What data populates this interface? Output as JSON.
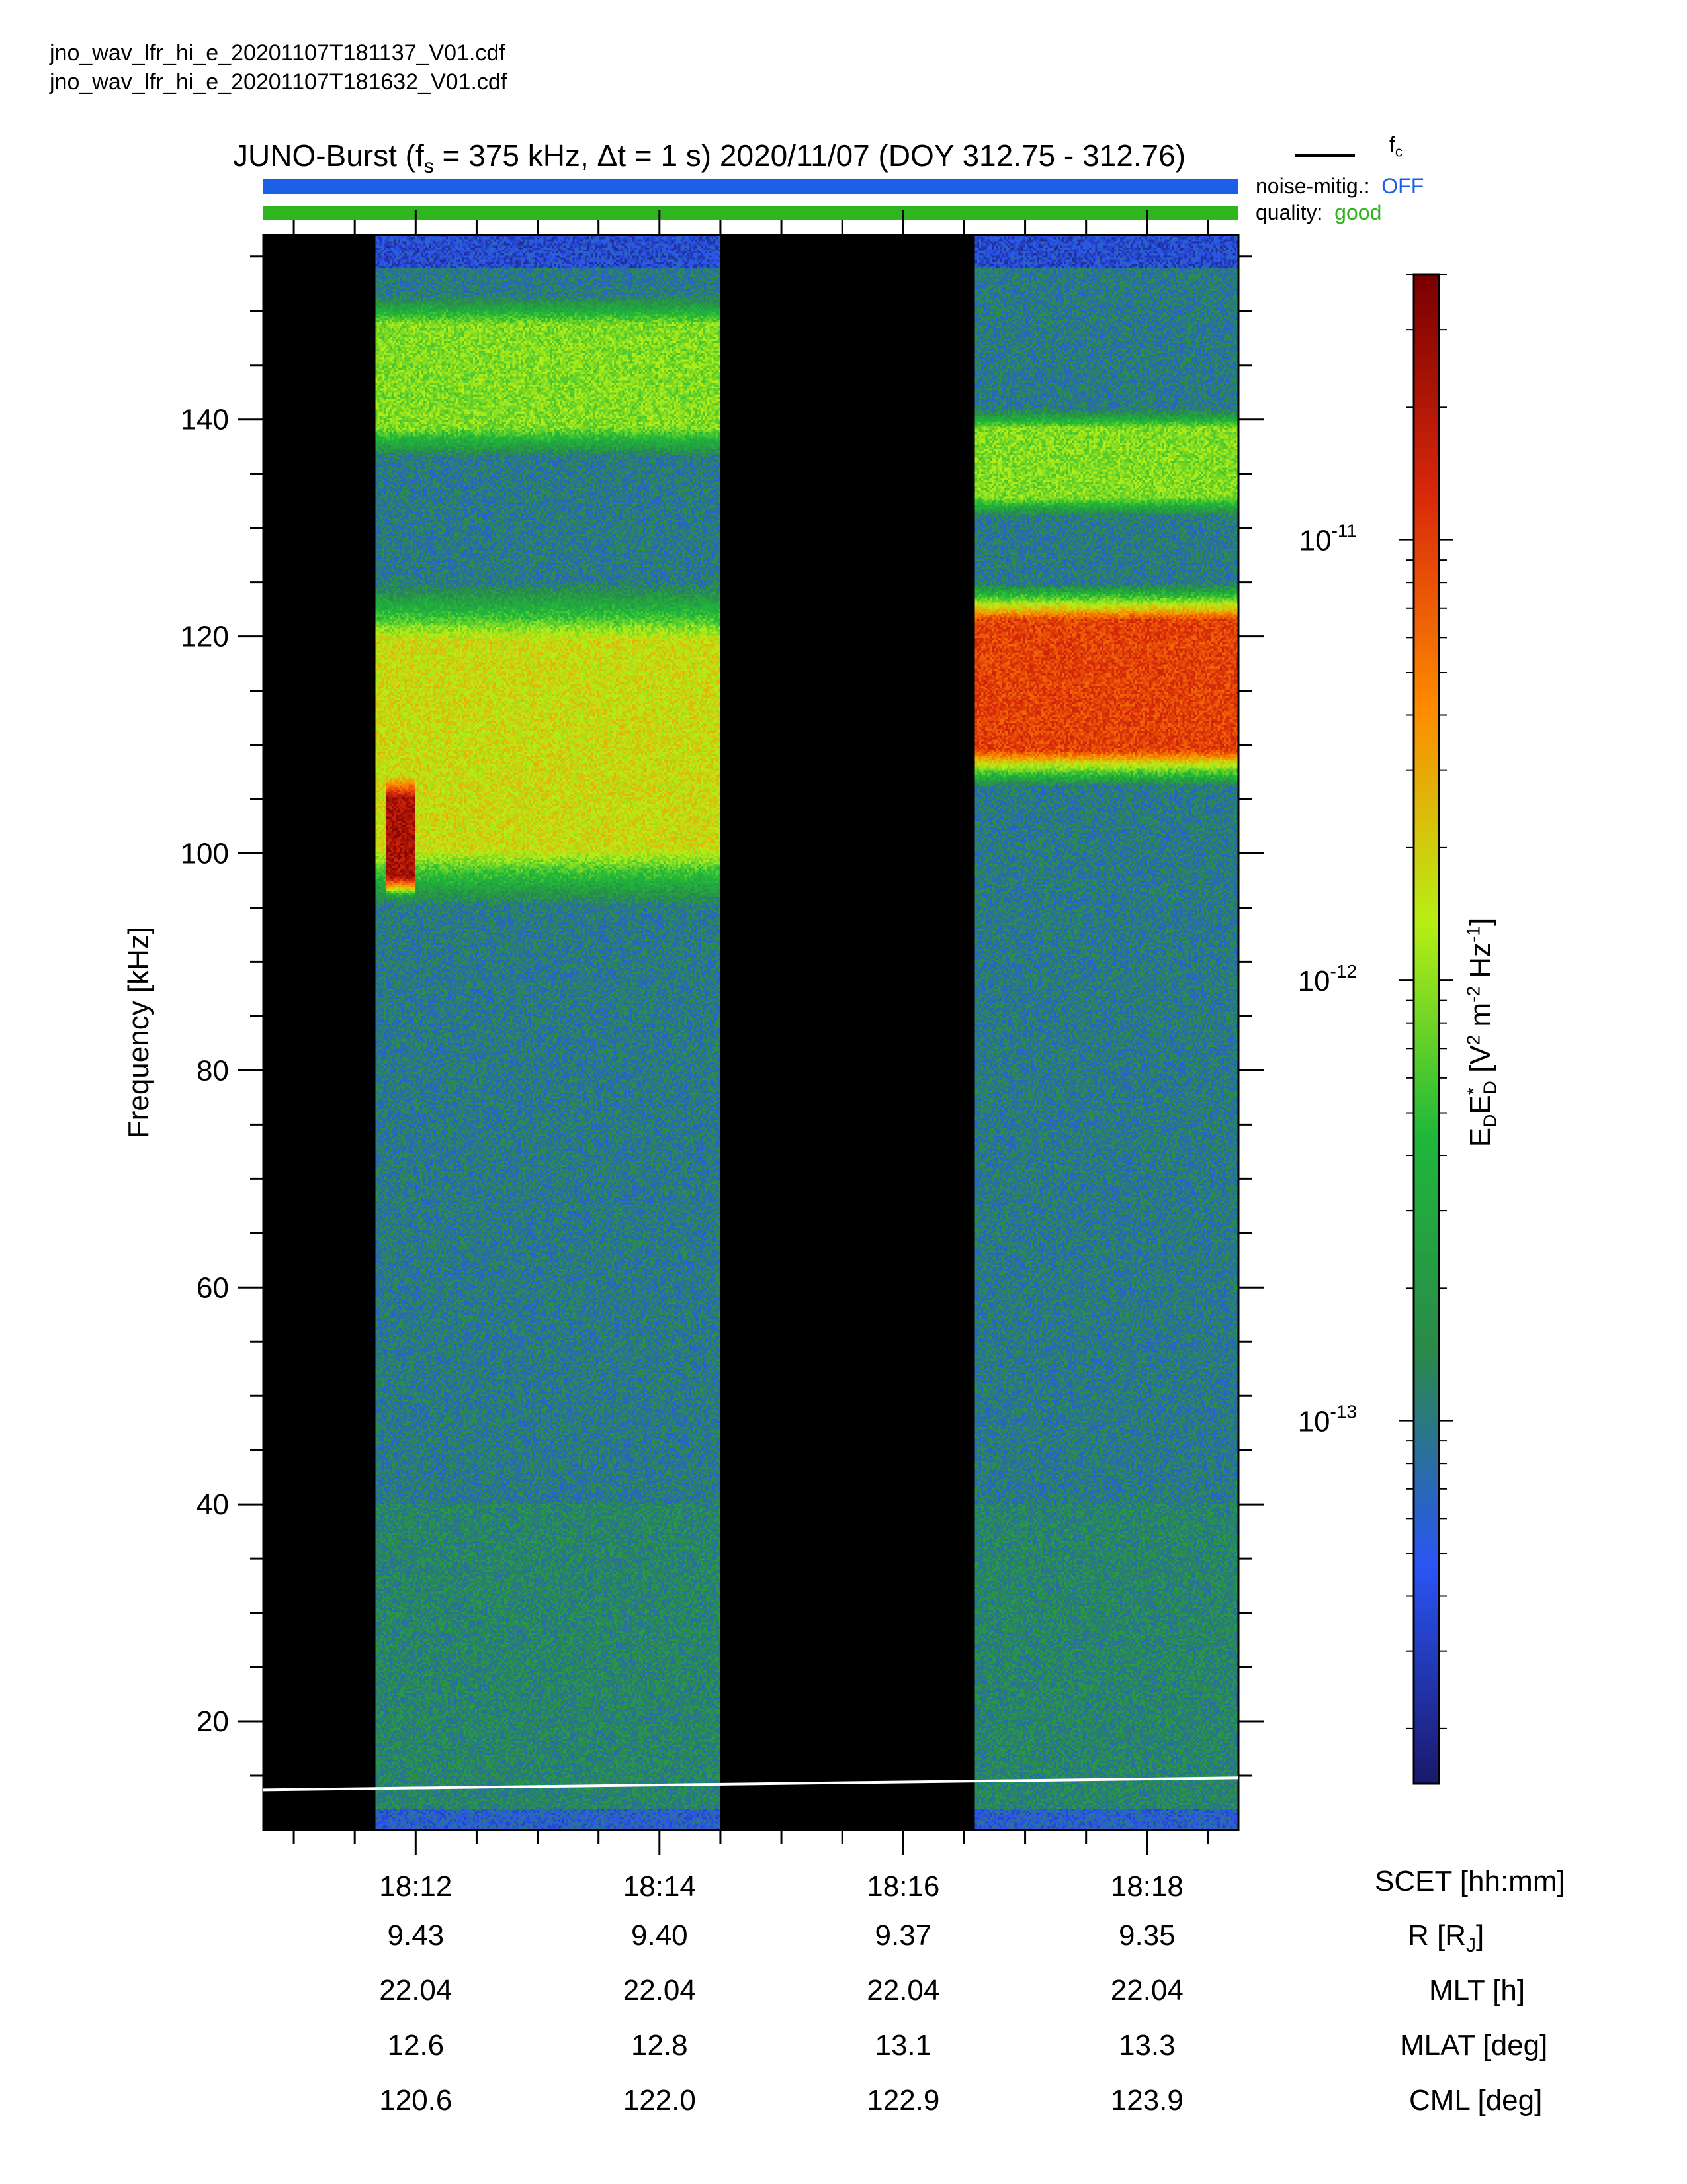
{
  "files": [
    "jno_wav_lfr_hi_e_20201107T181137_V01.cdf",
    "jno_wav_lfr_hi_e_20201107T181632_V01.cdf"
  ],
  "header": {
    "title_prefix": "JUNO-Burst (f",
    "title_sub": "s",
    "title_rest": " = 375 kHz, Δt = 1 s)  2020/11/07 (DOY 312.75 - 312.76)",
    "fc_label": "f",
    "fc_sub": "c",
    "noise_label": "noise-mitig.:",
    "noise_value": "OFF",
    "quality_label": "quality:",
    "quality_value": "good",
    "noise_color": "#1a5fe6",
    "quality_color": "#2fb51e"
  },
  "chart_data": {
    "type": "heatmap",
    "ylabel": "Frequency [kHz]",
    "ylim": [
      10,
      157
    ],
    "yticks": [
      20,
      40,
      60,
      80,
      100,
      120,
      140
    ],
    "xaxis_units": "SCET [hh:mm]",
    "xlim": [
      "18:10:45",
      "18:18:45"
    ],
    "xticks": [
      "18:12",
      "18:14",
      "18:16",
      "18:18"
    ],
    "data_gaps": [
      [
        "18:10:45",
        "18:11:40"
      ],
      [
        "18:14:30",
        "18:16:35"
      ]
    ],
    "colorbar": {
      "label": "E_D E*_D [V² m⁻² Hz⁻¹]",
      "scale": "log",
      "range": [
        1.5e-14,
        4e-11
      ],
      "ticks": [
        1e-13,
        1e-12,
        1e-11
      ],
      "tick_labels": [
        "10",
        "10",
        "10"
      ],
      "tick_exponents": [
        "-13",
        "-12",
        "-11"
      ],
      "colormap": [
        "#1a1a6e",
        "#2a55f5",
        "#2a8a4a",
        "#1fb83a",
        "#b8ef15",
        "#ff8a00",
        "#d8280a",
        "#7a0000"
      ]
    },
    "features": [
      {
        "kind": "band",
        "t": [
          "18:11:40",
          "18:14:30"
        ],
        "f": [
          138,
          150
        ],
        "level": "green"
      },
      {
        "kind": "band",
        "t": [
          "18:11:40",
          "18:14:30"
        ],
        "f": [
          98,
          122
        ],
        "level": "yellow-green"
      },
      {
        "kind": "burst",
        "t": [
          "18:11:45",
          "18:12:00"
        ],
        "f": [
          97,
          106
        ],
        "level": "dark red"
      },
      {
        "kind": "band",
        "t": [
          "18:16:35",
          "18:18:45"
        ],
        "f": [
          108,
          123
        ],
        "level": "red"
      },
      {
        "kind": "band",
        "t": [
          "18:16:35",
          "18:18:45"
        ],
        "f": [
          132,
          140
        ],
        "level": "green"
      }
    ],
    "fc_line": {
      "t": [
        "18:10:45",
        "18:18:45"
      ],
      "f": [
        13.7,
        14.8
      ]
    },
    "ephemeris": {
      "times": [
        "18:12",
        "18:14",
        "18:16",
        "18:18"
      ],
      "rows": [
        {
          "label": "R [R",
          "label_sub": "J",
          "label_end": "]",
          "values": [
            "9.43",
            "9.40",
            "9.37",
            "9.35"
          ]
        },
        {
          "label": "MLT [h]",
          "values": [
            "22.04",
            "22.04",
            "22.04",
            "22.04"
          ]
        },
        {
          "label": "MLAT [deg]",
          "values": [
            "12.6",
            "12.8",
            "13.1",
            "13.3"
          ]
        },
        {
          "label": "CML [deg]",
          "values": [
            "120.6",
            "122.0",
            "122.9",
            "123.9"
          ]
        }
      ]
    }
  }
}
